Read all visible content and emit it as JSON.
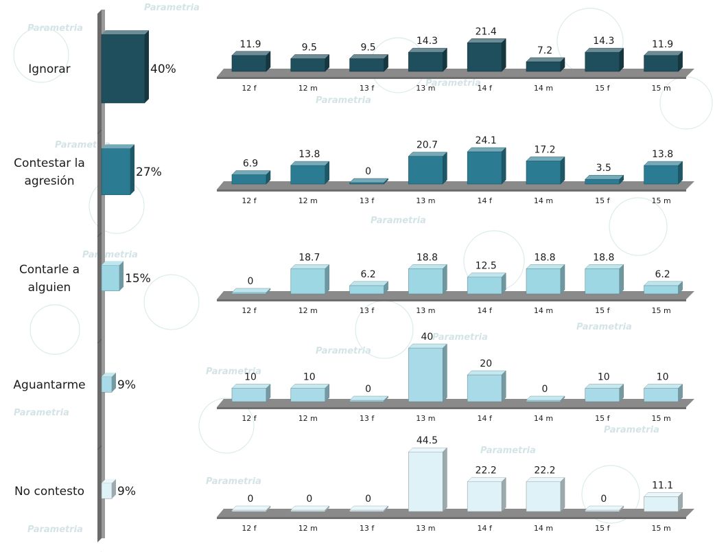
{
  "watermark": "Parametria",
  "colors": {
    "cat0": "#1f4e5c",
    "cat1": "#2b7c92",
    "cat2": "#9dd7e3",
    "cat3": "#a8dbe7",
    "cat4": "#dff2f7",
    "floor": "#8a8a8a"
  },
  "chart_data": [
    {
      "type": "bar",
      "orientation": "vertical-stack-axis",
      "categories": [
        "Ignorar",
        "Contestar la agresión",
        "Contarle a alguien",
        "Aguantarme",
        "No contesto"
      ],
      "category_lines": [
        [
          "Ignorar"
        ],
        [
          "Contestar la",
          "agresión"
        ],
        [
          "Contarle a",
          "alguien"
        ],
        [
          "Aguantarme"
        ],
        [
          "No contesto"
        ]
      ],
      "values": [
        40,
        27,
        15,
        9,
        9
      ],
      "value_labels": [
        "40%",
        "27%",
        "15%",
        "9%",
        "9%"
      ]
    },
    {
      "type": "bar",
      "groups": [
        "12 f",
        "12 m",
        "13 f",
        "13 m",
        "14 f",
        "14 m",
        "15 f",
        "15 m"
      ],
      "series": [
        {
          "category": "Ignorar",
          "values": [
            11.9,
            9.5,
            9.5,
            14.3,
            21.4,
            7.2,
            14.3,
            11.9
          ],
          "labels": [
            "11.9",
            "9.5",
            "9.5",
            "14.3",
            "21.4",
            "7.2",
            "14.3",
            "11.9"
          ]
        },
        {
          "category": "Contestar la agresión",
          "values": [
            6.9,
            13.8,
            0,
            20.7,
            24.1,
            17.2,
            3.5,
            13.8
          ],
          "labels": [
            "6.9",
            "13.8",
            "0",
            "20.7",
            "24.1",
            "17.2",
            "3.5",
            "13.8"
          ]
        },
        {
          "category": "Contarle a alguien",
          "values": [
            0,
            18.7,
            6.2,
            18.8,
            12.5,
            18.8,
            18.8,
            6.2
          ],
          "labels": [
            "0",
            "18.7",
            "6.2",
            "18.8",
            "12.5",
            "18.8",
            "18.8",
            "6.2"
          ]
        },
        {
          "category": "Aguantarme",
          "values": [
            10,
            10,
            0,
            40,
            20,
            0,
            10,
            10
          ],
          "labels": [
            "10",
            "10",
            "0",
            "40",
            "20",
            "0",
            "10",
            "10"
          ]
        },
        {
          "category": "No contesto",
          "values": [
            0,
            0,
            0,
            44.5,
            22.2,
            22.2,
            0,
            11.1
          ],
          "labels": [
            "0",
            "0",
            "0",
            "44.5",
            "22.2",
            "22.2",
            "0",
            "11.1"
          ]
        }
      ]
    }
  ]
}
